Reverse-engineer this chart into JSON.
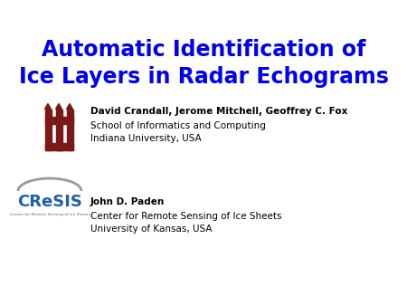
{
  "title_line1": "Automatic Identification of",
  "title_line2": "Ice Layers in Radar Echograms",
  "title_color": "#0000EE",
  "title_fontsize": 17,
  "author_bold": "David Crandall, Jerome Mitchell, Geoffrey C. Fox",
  "author_line2": "School of Informatics and Computing",
  "author_line3": "Indiana University, USA",
  "author_fontsize": 7.5,
  "author2_bold": "John D. Paden",
  "author2_line2": "Center for Remote Sensing of Ice Sheets",
  "author2_line3": "University of Kansas, USA",
  "bg_color": "#ffffff",
  "iu_logo_color": "#7B1818",
  "cresis_text_color": "#2060AA",
  "cresis_small_text": "Center for Remote Sensing of Ice Sheets"
}
